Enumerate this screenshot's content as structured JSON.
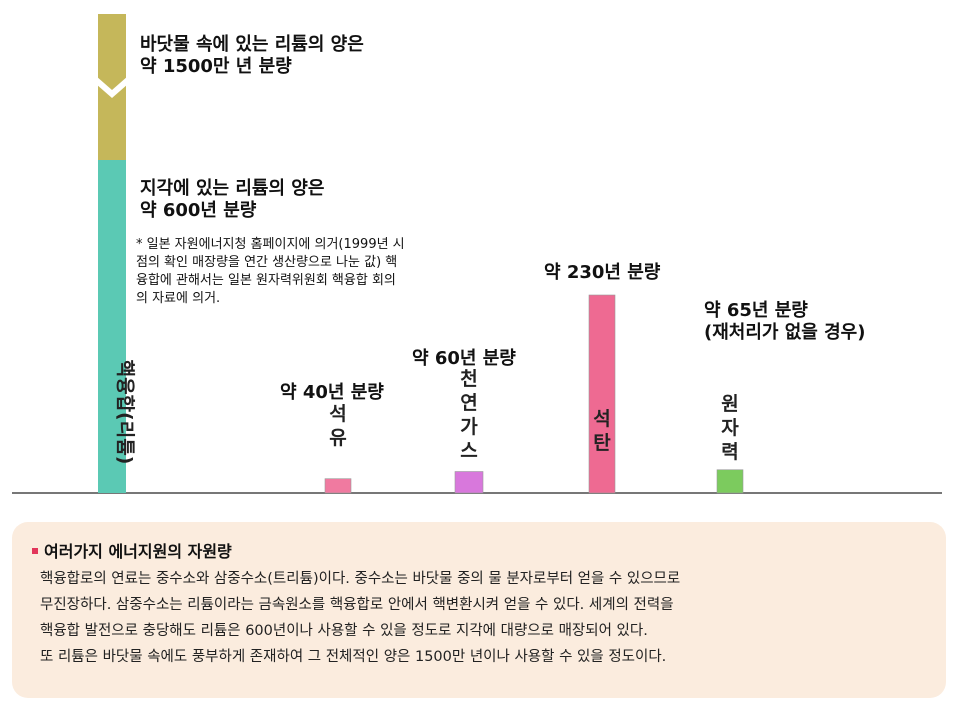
{
  "chart_data": {
    "type": "bar",
    "categories": [
      "핵융합(리튬)",
      "석유",
      "천연가스",
      "석탄",
      "원자력"
    ],
    "values": [
      15000000,
      40,
      60,
      230,
      65
    ],
    "units": "년",
    "axis_break": true,
    "fusion_segments": [
      {
        "label": "지각에 있는 리튬의 양은 약 600년 분량",
        "value": 600,
        "color": "#5bc9b4"
      },
      {
        "label": "바닷물 속에 있는 리튬의 양은 약 1500만 년 분량",
        "value": 15000000,
        "color": "#c5b75a"
      }
    ],
    "bar_colors": [
      "#5bc9b4",
      "#f07aa0",
      "#d878dc",
      "#ee6a92",
      "#7ccb5e"
    ],
    "labels": {
      "fusion_vertical": "핵융합(리튬)",
      "oil": "석유",
      "gas": "천연가스",
      "coal": "석탄",
      "nuclear": "원자력"
    },
    "annotations": {
      "seawater_line1": "바닷물 속에 있는 리튬의 양은",
      "seawater_line2": "약 1500만 년 분량",
      "crust_line1": "지각에 있는 리튬의 양은",
      "crust_line2": "약 600년 분량",
      "oil": "약 40년 분량",
      "gas": "약 60년 분량",
      "coal": "약 230년 분량",
      "nuclear_line1": "약 65년 분량",
      "nuclear_line2": "(재처리가 없을 경우)"
    },
    "note": "* 일본 자원에너지청 홈페이지에 의거(1999년 시점의 확인 매장량을 연간 생산량으로 나눈 값) 핵융합에 관해서는 일본 원자력위원회 핵융합 회의의 자료에 의거.",
    "grid": false
  },
  "panel": {
    "title": "여러가지 에너지원의 자원량",
    "lines": [
      "핵융합로의 연료는 중수소와 삼중수소(트리튬)이다. 중수소는 바닷물 중의 물 분자로부터 얻을 수 있으므로",
      "무진장하다. 삼중수소는 리튬이라는 금속원소를 핵융합로 안에서 핵변환시켜 얻을 수 있다. 세계의 전력을",
      "핵융합 발전으로 충당해도 리튬은 600년이나 사용할 수 있을 정도로 지각에 대량으로 매장되어 있다.",
      "또 리튬은 바닷물 속에도 풍부하게 존재하여 그 전체적인 양은 1500만 년이나 사용할 수 있을 정도이다."
    ]
  }
}
